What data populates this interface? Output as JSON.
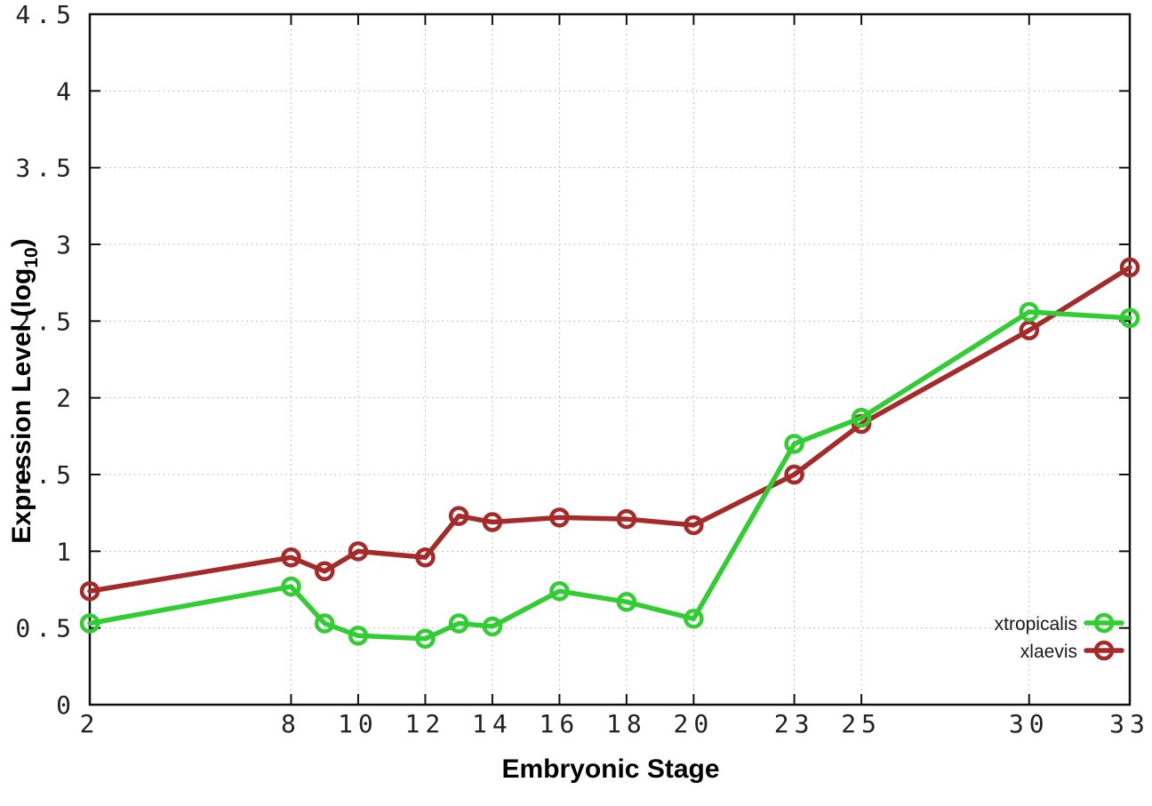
{
  "chart_data": {
    "type": "line",
    "title": "",
    "xlabel": "Embryonic Stage",
    "ylabel": "Expression Level (log10)",
    "ylabel_parts": {
      "main": "Expression Level (log",
      "sub": "10",
      "end": ")"
    },
    "xlim": [
      2,
      33
    ],
    "ylim": [
      0,
      4.5
    ],
    "x_ticks": [
      2,
      8,
      10,
      12,
      14,
      16,
      18,
      20,
      23,
      25,
      30,
      33
    ],
    "y_ticks": [
      0,
      0.5,
      1,
      1.5,
      2,
      2.5,
      3,
      3.5,
      4,
      4.5
    ],
    "grid": true,
    "grid_style": "dotted",
    "legend_position": "bottom-right-inside",
    "marker": "open-circle",
    "x": [
      2,
      8,
      9,
      10,
      12,
      13,
      14,
      16,
      18,
      20,
      23,
      25,
      30,
      33
    ],
    "series": [
      {
        "name": "xtropicalis",
        "color": "#32cd32",
        "values": [
          0.53,
          0.77,
          0.53,
          0.45,
          0.43,
          0.53,
          0.51,
          0.74,
          0.67,
          0.56,
          1.7,
          1.87,
          2.56,
          2.52
        ]
      },
      {
        "name": "xlaevis",
        "color": "#a52a2a",
        "values": [
          0.74,
          0.96,
          0.87,
          1.0,
          0.96,
          1.23,
          1.19,
          1.22,
          1.21,
          1.17,
          1.5,
          1.83,
          2.44,
          2.85
        ]
      }
    ]
  },
  "style_colors": {
    "grid": "#bfbfbf",
    "border": "#111111",
    "tick": "#111111",
    "background": "#ffffff"
  }
}
